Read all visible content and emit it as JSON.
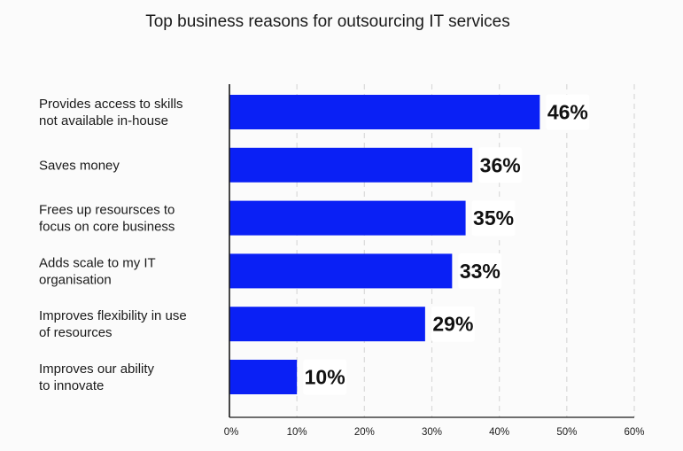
{
  "chart_data": {
    "type": "bar",
    "orientation": "horizontal",
    "title": "Top business reasons for outsourcing IT services",
    "categories": [
      [
        "Provides access to skills",
        "not available in-house"
      ],
      [
        "Saves money"
      ],
      [
        "Frees up resoursces to",
        "focus on core business"
      ],
      [
        "Adds scale to my IT",
        "organisation"
      ],
      [
        "Improves flexibility in use",
        "of resources"
      ],
      [
        "Improves our ability",
        "to innovate"
      ]
    ],
    "values": [
      46,
      36,
      35,
      33,
      29,
      10
    ],
    "data_labels": [
      "46%",
      "36%",
      "35%",
      "33%",
      "29%",
      "10%"
    ],
    "xlim": [
      0,
      60
    ],
    "x_ticks": [
      0,
      10,
      20,
      30,
      40,
      50,
      60
    ],
    "x_tick_labels": [
      "0%",
      "10%",
      "20%",
      "30%",
      "40%",
      "50%",
      "60%"
    ],
    "xlabel": "",
    "ylabel": "",
    "grid": "vertical dashed",
    "legend": "none"
  },
  "colors": {
    "bar": "#0a20f5",
    "label_box": "#ffffff",
    "gridline": "#d9d9d9",
    "axis": "#1a1a1a",
    "text": "#1a1a1a",
    "background": "#fbfbfb"
  }
}
